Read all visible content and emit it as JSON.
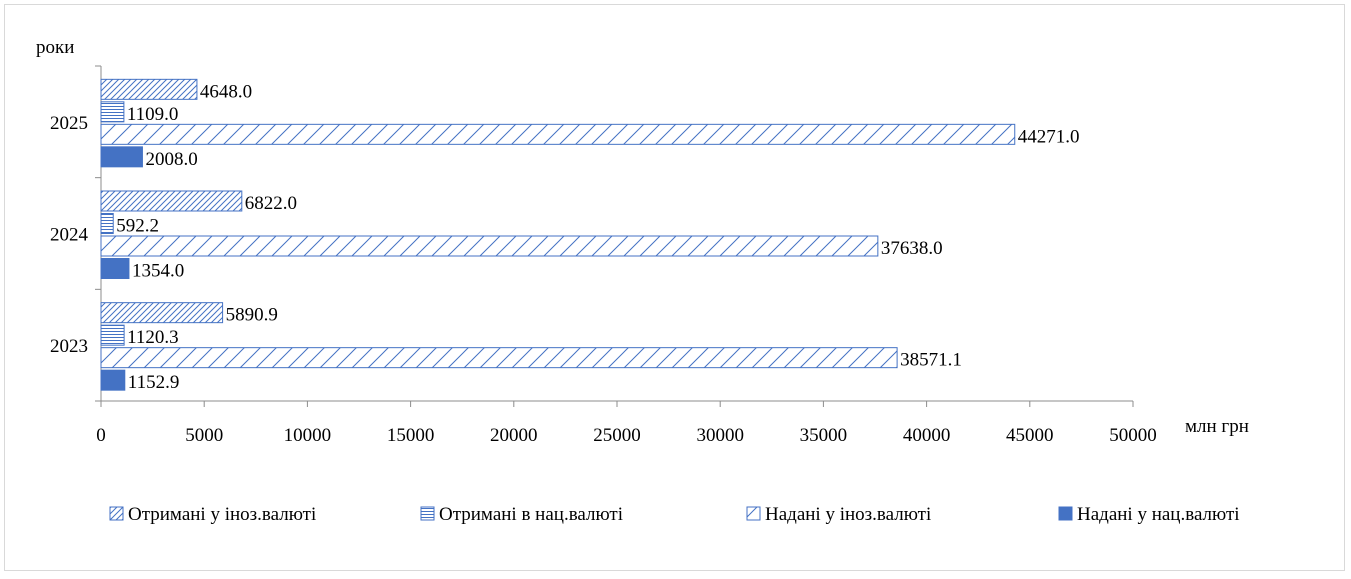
{
  "chart_data": {
    "type": "bar",
    "orientation": "horizontal",
    "ylabel": "роки",
    "xlabel": "млн грн",
    "categories": [
      "2023",
      "2024",
      "2025"
    ],
    "xlim": [
      0,
      50000
    ],
    "xticks": [
      "0",
      "5000",
      "10000",
      "15000",
      "20000",
      "25000",
      "30000",
      "35000",
      "40000",
      "45000",
      "50000"
    ],
    "grid": false,
    "legend_position": "bottom",
    "series": [
      {
        "name": "Надані у нац.валюті",
        "values": [
          1152.9,
          1354.0,
          2008.0
        ],
        "labels": [
          "1152.9",
          "1354.0",
          "2008.0"
        ],
        "fill": "solid",
        "color": "#4472c4"
      },
      {
        "name": "Надані у іноз.валюті",
        "values": [
          38571.1,
          37638.0,
          44271.0
        ],
        "labels": [
          "38571.1",
          "37638.0",
          "44271.0"
        ],
        "fill": "diagonal",
        "color": "#4472c4"
      },
      {
        "name": "Отримані в нац.валюті",
        "values": [
          1120.3,
          592.2,
          1109.0
        ],
        "labels": [
          "1120.3",
          "592.2",
          "1109.0"
        ],
        "fill": "horizontal",
        "color": "#4472c4"
      },
      {
        "name": "Отримані у іноз.валюті",
        "values": [
          5890.9,
          6822.0,
          4648.0
        ],
        "labels": [
          "5890.9",
          "6822.0",
          "4648.0"
        ],
        "fill": "diagonal",
        "color": "#4472c4"
      }
    ],
    "legend_order": [
      "Отримані у іноз.валюті",
      "Отримані в нац.валюті",
      "Надані у іноз.валюті",
      "Надані у нац.валюті"
    ]
  }
}
